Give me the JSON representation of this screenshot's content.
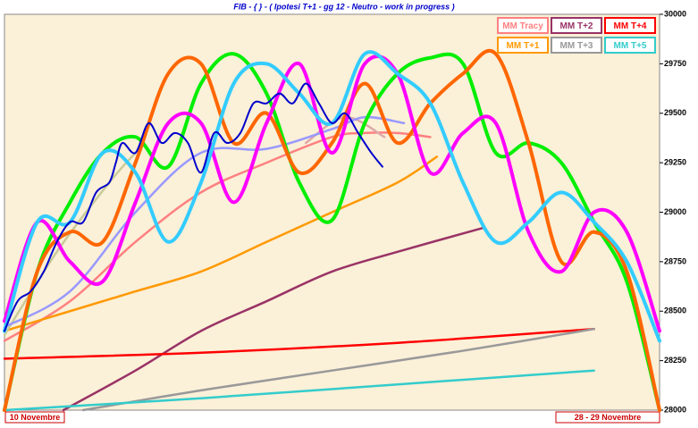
{
  "chart_data": {
    "type": "line",
    "title": "FIB  -  {  } - ( Ipotesi T+1 - gg 12 - Neutro - work in progress )",
    "x_start_label": "10  Novembre",
    "x_end_label": "28 - 29  Novembre",
    "xlim": [
      0,
      100
    ],
    "ylim": [
      28000,
      30000
    ],
    "yticks": [
      28000,
      28250,
      28500,
      28750,
      29000,
      29250,
      29500,
      29750,
      30000
    ],
    "background": "#fbf0d8",
    "legend": "top-right",
    "series": [
      {
        "name": "MM Tracy",
        "color": "#ff8080",
        "width": 2.5,
        "x": [
          0,
          10,
          20,
          30,
          40,
          50,
          55,
          60,
          65
        ],
        "values": [
          28350,
          28550,
          28850,
          29100,
          29250,
          29380,
          29400,
          29400,
          29380
        ]
      },
      {
        "name": "MM T+2",
        "color": "#993366",
        "width": 2.5,
        "x": [
          9,
          20,
          30,
          40,
          50,
          60,
          73
        ],
        "values": [
          28000,
          28200,
          28400,
          28550,
          28700,
          28800,
          28920
        ]
      },
      {
        "name": "MM T+4",
        "color": "#ff0000",
        "width": 2.5,
        "x": [
          0,
          30,
          60,
          90
        ],
        "values": [
          28260,
          28290,
          28340,
          28410
        ]
      },
      {
        "name": "MM T+1",
        "color": "#ff9900",
        "width": 2.5,
        "x": [
          0,
          10,
          20,
          30,
          40,
          50,
          60,
          66
        ],
        "values": [
          28400,
          28500,
          28600,
          28700,
          28850,
          29000,
          29150,
          29280
        ]
      },
      {
        "name": "MM T+3",
        "color": "#999999",
        "width": 2.5,
        "x": [
          12,
          30,
          50,
          70,
          90
        ],
        "values": [
          28000,
          28100,
          28200,
          28300,
          28410
        ]
      },
      {
        "name": "MM T+5",
        "color": "#33cccc",
        "width": 2.5,
        "x": [
          0,
          30,
          60,
          90
        ],
        "values": [
          28000,
          28060,
          28130,
          28200
        ]
      },
      {
        "color": "#c8cc99",
        "width": 2.5,
        "x": [
          0,
          8,
          16,
          20
        ],
        "values": [
          28380,
          28800,
          29150,
          29300
        ]
      },
      {
        "color": "#ddaaaa",
        "width": 2.5,
        "x": [
          46,
          52,
          58
        ],
        "values": [
          29350,
          29480,
          29380
        ]
      },
      {
        "color": "#9999ff",
        "width": 2.5,
        "x": [
          0,
          10,
          20,
          30,
          40,
          50,
          55,
          61
        ],
        "values": [
          28420,
          28600,
          29000,
          29300,
          29320,
          29420,
          29480,
          29450
        ]
      },
      {
        "color": "#00ee00",
        "width": 4,
        "x": [
          0,
          5,
          10,
          15,
          20,
          25,
          30,
          35,
          40,
          45,
          50,
          55,
          60,
          65,
          70,
          75,
          80,
          85,
          90,
          95,
          100
        ],
        "values": [
          28000,
          28700,
          29050,
          29300,
          29380,
          29230,
          29650,
          29800,
          29600,
          29150,
          28960,
          29450,
          29700,
          29780,
          29750,
          29300,
          29350,
          29250,
          28950,
          28650,
          28000
        ]
      },
      {
        "color": "#ff6600",
        "width": 4,
        "x": [
          0,
          5,
          10,
          15,
          20,
          25,
          30,
          35,
          40,
          45,
          50,
          55,
          60,
          65,
          70,
          75,
          80,
          85,
          90,
          95,
          100
        ],
        "values": [
          28000,
          28700,
          28900,
          28850,
          29250,
          29700,
          29750,
          29350,
          29500,
          29200,
          29350,
          29650,
          29350,
          29550,
          29700,
          29800,
          29350,
          28750,
          28900,
          28700,
          28000
        ]
      },
      {
        "color": "#ff00ff",
        "width": 4,
        "x": [
          0,
          5,
          10,
          15,
          20,
          25,
          30,
          35,
          40,
          45,
          50,
          55,
          60,
          65,
          70,
          75,
          80,
          85,
          90,
          95,
          100
        ],
        "values": [
          28450,
          28950,
          28750,
          28650,
          29050,
          29450,
          29450,
          29050,
          29450,
          29750,
          29300,
          29750,
          29700,
          29200,
          29400,
          29450,
          28900,
          28700,
          29000,
          28900,
          28400
        ]
      },
      {
        "color": "#33ccff",
        "width": 4,
        "x": [
          0,
          5,
          10,
          15,
          20,
          25,
          30,
          35,
          40,
          45,
          50,
          55,
          60,
          65,
          70,
          75,
          80,
          85,
          90,
          95,
          100
        ],
        "values": [
          28400,
          28950,
          28950,
          29300,
          29200,
          28850,
          29150,
          29650,
          29750,
          29600,
          29450,
          29800,
          29700,
          29550,
          29150,
          28850,
          28950,
          29100,
          28950,
          28750,
          28350
        ]
      },
      {
        "color": "#0000cc",
        "width": 2,
        "x": [
          0,
          2,
          4,
          6,
          8,
          10,
          12,
          14,
          16,
          17,
          18,
          20,
          22,
          24,
          26,
          28,
          30,
          32,
          34,
          36,
          38,
          40,
          42,
          44,
          46,
          48,
          50,
          52,
          54,
          56,
          57.7
        ],
        "values": [
          28400,
          28550,
          28600,
          28700,
          28850,
          28950,
          28950,
          29100,
          29150,
          29250,
          29350,
          29300,
          29450,
          29350,
          29400,
          29350,
          29200,
          29400,
          29350,
          29400,
          29550,
          29550,
          29600,
          29550,
          29650,
          29550,
          29450,
          29500,
          29400,
          29300,
          29230
        ]
      }
    ]
  }
}
